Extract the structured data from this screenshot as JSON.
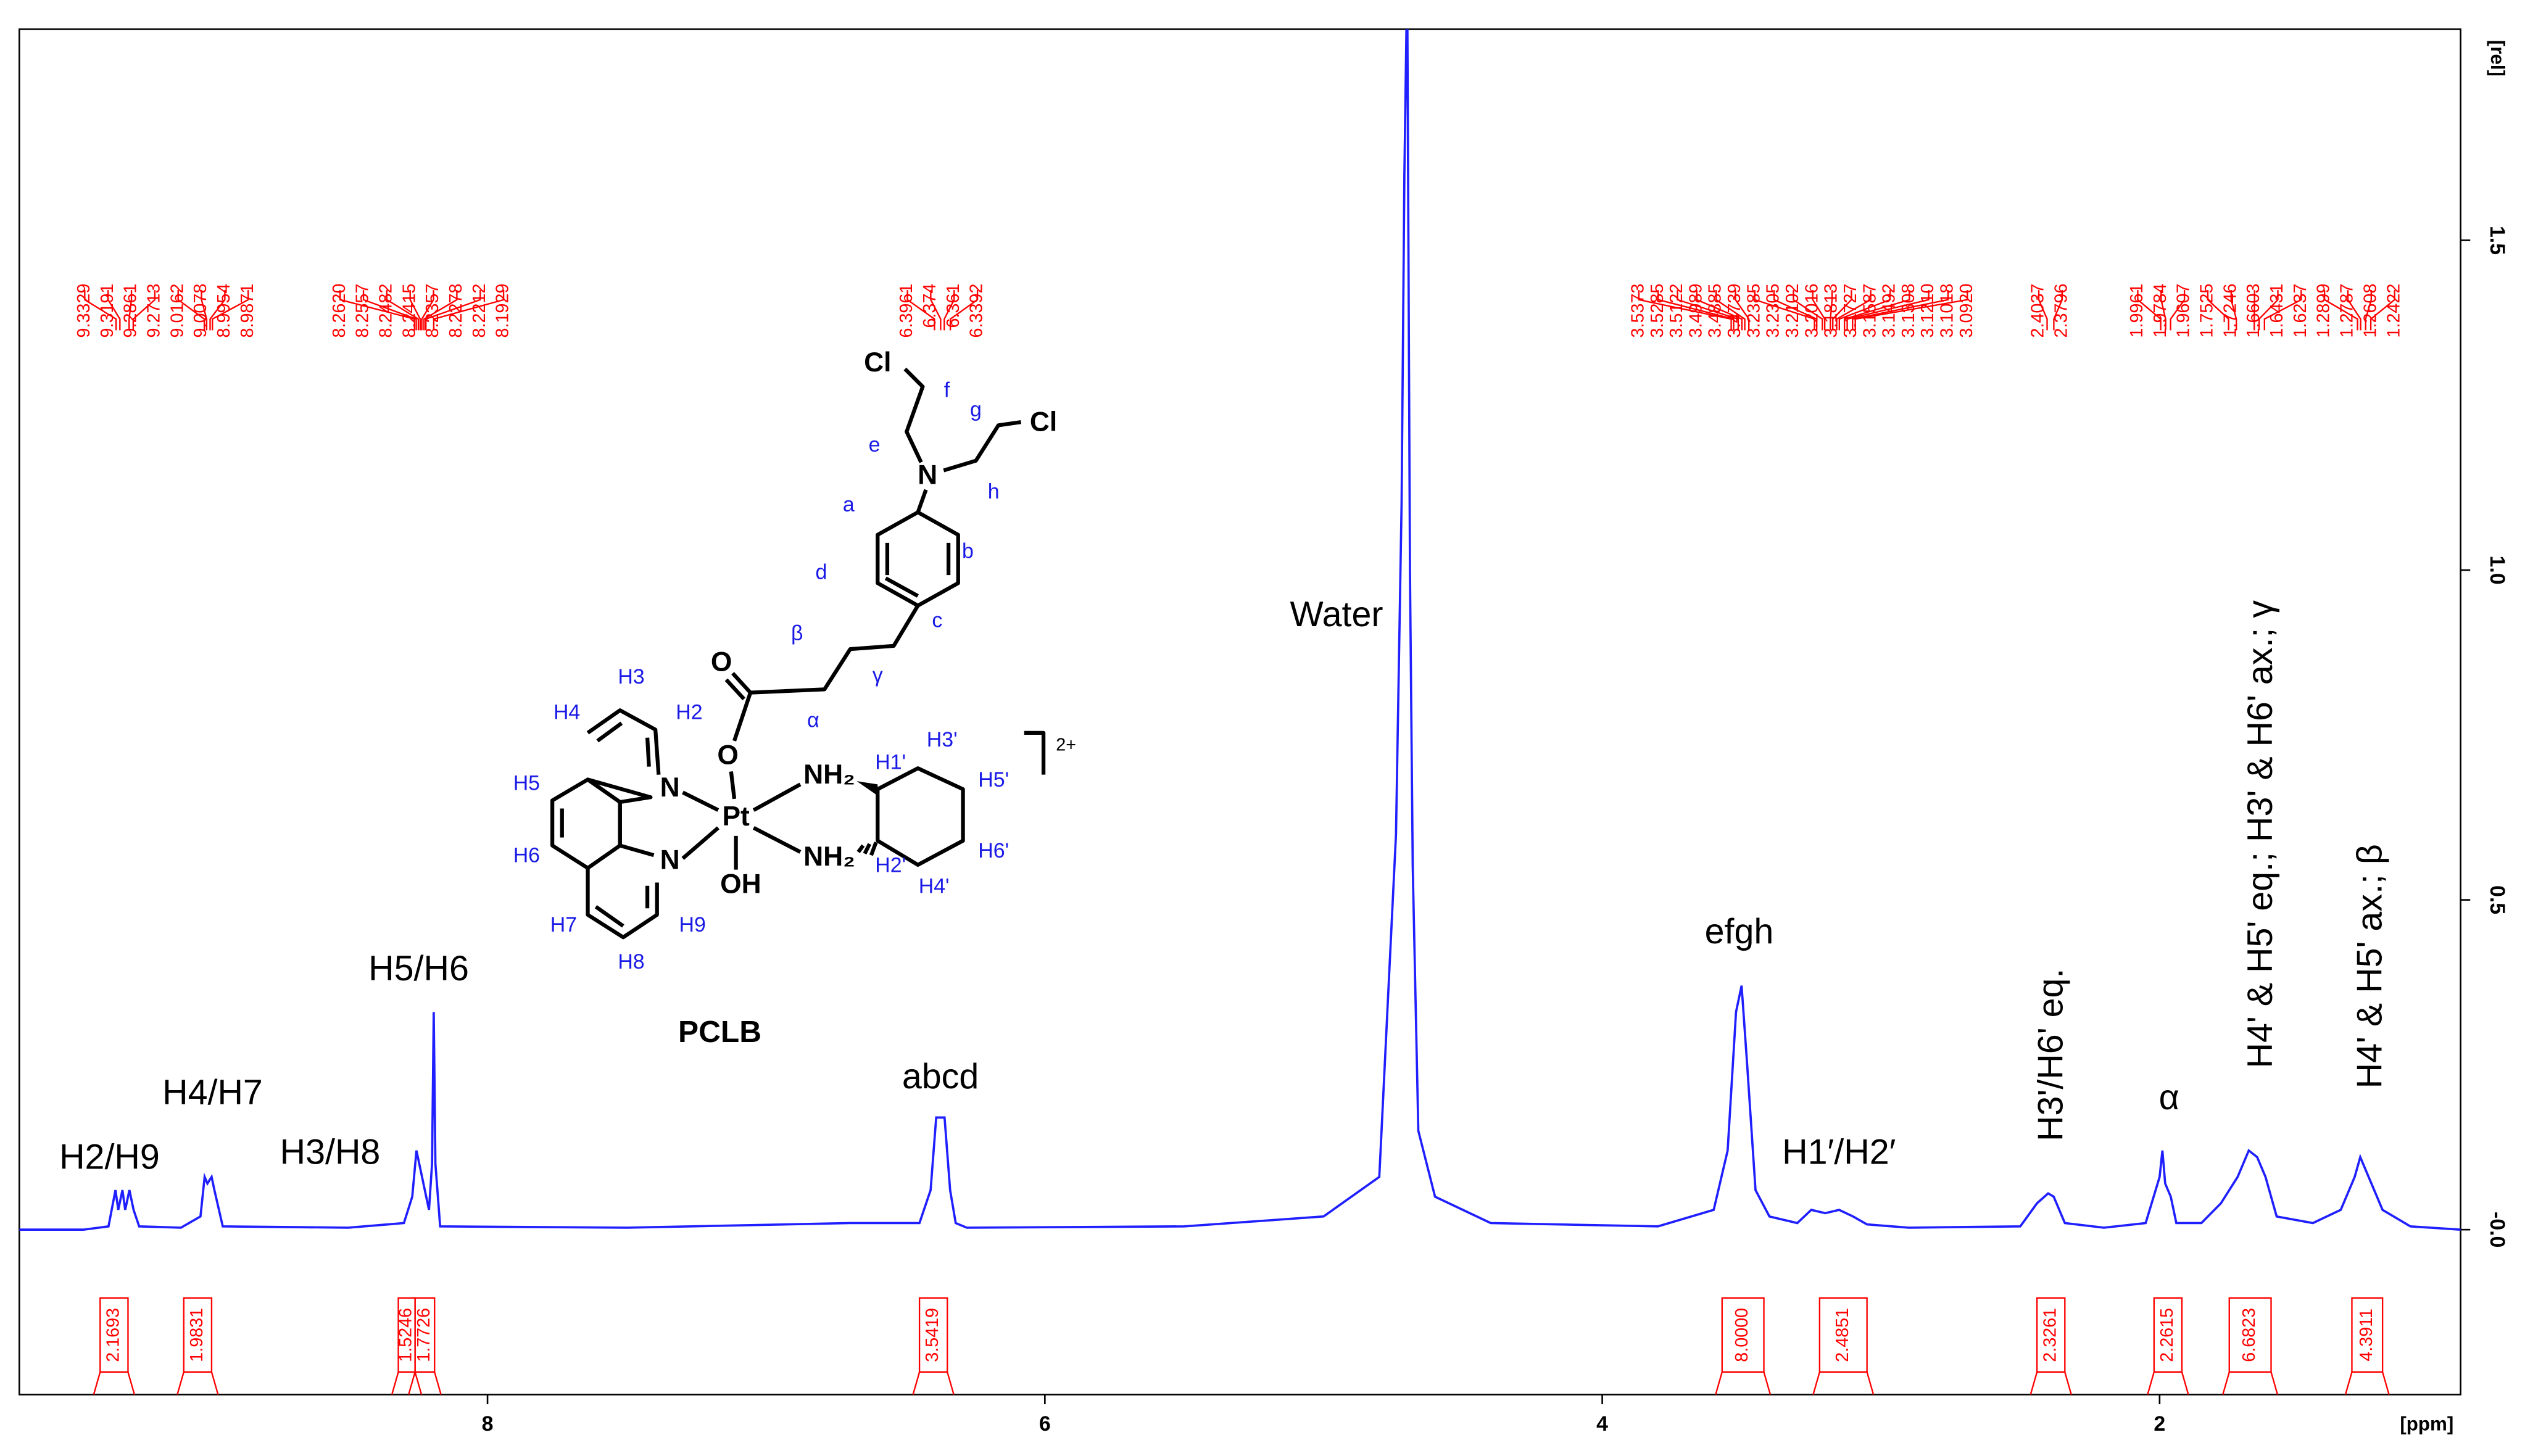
{
  "chart_data": {
    "type": "line",
    "xlabel": "[ppm]",
    "ylabel": "[rel]",
    "color": "#1f1fff",
    "x": [
      9.68,
      9.45,
      9.36,
      9.335,
      9.325,
      9.31,
      9.3,
      9.285,
      9.27,
      9.25,
      9.1,
      9.03,
      9.015,
      9.005,
      8.99,
      8.98,
      8.95,
      8.5,
      8.3,
      8.27,
      8.255,
      8.24,
      8.225,
      8.21,
      8.199,
      8.193,
      8.187,
      8.17,
      7.5,
      6.7,
      6.45,
      6.41,
      6.39,
      6.37,
      6.36,
      6.34,
      6.32,
      6.28,
      5.5,
      5.0,
      4.8,
      4.74,
      4.72,
      4.71,
      4.7,
      4.69,
      4.68,
      4.66,
      4.6,
      4.4,
      3.8,
      3.6,
      3.55,
      3.52,
      3.5,
      3.48,
      3.45,
      3.4,
      3.3,
      3.25,
      3.2,
      3.15,
      3.1,
      3.05,
      2.9,
      2.5,
      2.44,
      2.4,
      2.38,
      2.34,
      2.2,
      2.05,
      2.0,
      1.99,
      1.98,
      1.96,
      1.94,
      1.85,
      1.78,
      1.72,
      1.68,
      1.65,
      1.62,
      1.58,
      1.45,
      1.35,
      1.3,
      1.28,
      1.25,
      1.2,
      1.1,
      0.92
    ],
    "values": [
      0,
      0,
      0.005,
      0.06,
      0.03,
      0.06,
      0.03,
      0.06,
      0.03,
      0.005,
      0.003,
      0.02,
      0.08,
      0.07,
      0.08,
      0.06,
      0.005,
      0.003,
      0.01,
      0.05,
      0.12,
      0.09,
      0.06,
      0.03,
      0.1,
      0.33,
      0.1,
      0.005,
      0.003,
      0.01,
      0.01,
      0.06,
      0.17,
      0.17,
      0.17,
      0.06,
      0.01,
      0.003,
      0.005,
      0.02,
      0.08,
      0.6,
      1.1,
      1.6,
      1.9,
      1.0,
      0.55,
      0.15,
      0.05,
      0.01,
      0.005,
      0.03,
      0.12,
      0.33,
      0.37,
      0.25,
      0.06,
      0.02,
      0.01,
      0.03,
      0.025,
      0.03,
      0.02,
      0.008,
      0.003,
      0.005,
      0.04,
      0.055,
      0.05,
      0.01,
      0.003,
      0.01,
      0.08,
      0.12,
      0.07,
      0.05,
      0.01,
      0.01,
      0.04,
      0.08,
      0.12,
      0.11,
      0.08,
      0.02,
      0.01,
      0.03,
      0.08,
      0.11,
      0.08,
      0.03,
      0.005,
      0
    ],
    "xlim": [
      9.68,
      0.92
    ],
    "xticks": [
      8,
      6,
      4,
      2
    ],
    "ylim": [
      -0.25,
      1.82
    ],
    "yticks": [
      {
        "value": 0,
        "label": "-0.0"
      },
      0.5,
      {
        "value": 1,
        "label": "1.0"
      },
      1.5
    ],
    "annotations": [
      "H2/H9",
      "H4/H7",
      "H3/H8",
      "H5/H6",
      "abcd",
      "Water",
      "efgh",
      "H1′/H2′",
      "H3'/H6' eq.",
      "α",
      "H4' & H5' eq.; H3' & H6' ax.; γ",
      "H4' & H5' ax.; β"
    ],
    "peak_color": "#ff0000",
    "peak_picks": [
      [
        9.3329,
        9.3191,
        9.2861,
        9.2713,
        9.0162,
        9.0078,
        8.9954,
        8.9871
      ],
      [
        {
          "value": 8.262,
          "label": "8.2620"
        },
        8.2557,
        8.2482,
        8.2415,
        8.2357,
        8.2278,
        8.2212,
        8.1929
      ],
      [
        6.3961,
        6.374,
        6.361,
        6.3392
      ],
      [
        3.5373,
        3.5285,
        3.5122,
        3.4989,
        3.4885,
        3.4739,
        3.2385,
        3.2305,
        3.2102,
        3.2016,
        3.1813,
        3.1727,
        3.1587,
        3.1492,
        3.1308,
        {
          "value": 3.121,
          "label": "3.1210"
        },
        3.1018,
        {
          "value": 3.092,
          "label": "3.0920"
        }
      ],
      [
        2.4037,
        2.3796
      ],
      [
        1.9961,
        1.9784,
        1.9607,
        1.7525,
        1.7246,
        1.6603,
        1.6431,
        1.6237,
        1.2899,
        1.2787,
        1.2608,
        1.2422
      ]
    ],
    "integrals": {
      "values": [
        2.1693,
        1.9831,
        1.5246,
        1.7726,
        3.5419,
        8,
        2.4851,
        2.3261,
        2.2615,
        6.6823,
        4.3911
      ],
      "value_labels": [
        "2.1693",
        "1.9831",
        "1.5246",
        "1.7726",
        "3.5419",
        "8.0000",
        "2.4851",
        "2.3261",
        "2.2615",
        "6.6823",
        "4.3911"
      ],
      "from": [
        9.39,
        9.09,
        8.32,
        8.26,
        6.45,
        3.57,
        3.22,
        2.44,
        2.02,
        1.75,
        1.31
      ],
      "to": [
        9.29,
        8.99,
        8.26,
        8.19,
        6.35,
        3.42,
        3.05,
        2.34,
        1.92,
        1.6,
        1.2
      ]
    }
  },
  "structure": {
    "name": "PCLB",
    "labels": [
      "Cl",
      "f",
      "g",
      "Cl",
      "e",
      "N",
      "h",
      "a",
      "b",
      "d",
      "c",
      "β",
      "γ",
      "O",
      "α",
      "H3",
      "H4",
      "H2",
      "H3'",
      "2+",
      "H1'",
      "O",
      "NH₂",
      "H5'",
      "H5",
      "N",
      "Pt",
      "H6",
      "N",
      "NH₂",
      "H2'",
      "H6'",
      "OH",
      "H4'",
      "H7",
      "H9",
      "H8"
    ]
  }
}
